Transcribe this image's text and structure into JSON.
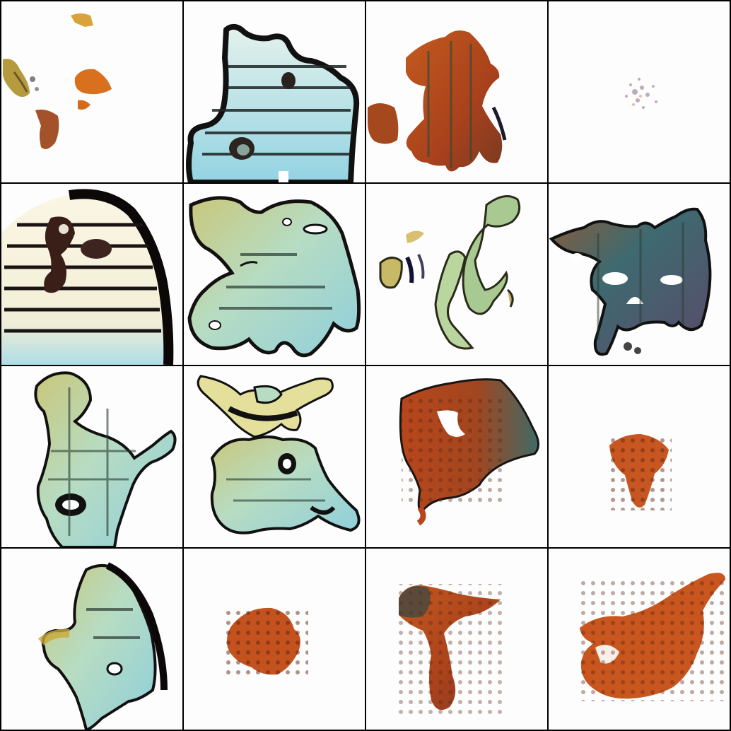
{
  "grid": {
    "rows": 4,
    "cols": 4,
    "background": "#fdfdfd",
    "border": "#000000"
  },
  "palette": {
    "rust": "#b8461c",
    "orange": "#d8701e",
    "gold": "#d9a23a",
    "mint": "#b6dcc0",
    "cyan": "#9dd3df",
    "olive": "#a9c06a",
    "teal": "#3f6f6e",
    "cream": "#f6f0d8",
    "ink": "#141010"
  },
  "tiles": [
    {
      "name": "tile-r1c1",
      "motif": "scattered-orange-blobs"
    },
    {
      "name": "tile-r1c2",
      "motif": "cyan-striped-shape"
    },
    {
      "name": "tile-r1c3",
      "motif": "rust-mushroom-shape"
    },
    {
      "name": "tile-r1c4",
      "motif": "faint-speckle"
    },
    {
      "name": "tile-r2c1",
      "motif": "cream-striped-face"
    },
    {
      "name": "tile-r2c2",
      "motif": "mint-blob"
    },
    {
      "name": "tile-r2c3",
      "motif": "green-fragments"
    },
    {
      "name": "tile-r2c4",
      "motif": "dark-mask-shape"
    },
    {
      "name": "tile-r3c1",
      "motif": "mint-map-shape"
    },
    {
      "name": "tile-r3c2",
      "motif": "mint-swirl-shape"
    },
    {
      "name": "tile-r3c3",
      "motif": "rust-teal-blob"
    },
    {
      "name": "tile-r3c4",
      "motif": "small-rust-cone"
    },
    {
      "name": "tile-r4c1",
      "motif": "mint-leaf-shape"
    },
    {
      "name": "tile-r4c2",
      "motif": "rust-speckle-cluster"
    },
    {
      "name": "tile-r4c3",
      "motif": "rust-tree-shape"
    },
    {
      "name": "tile-r4c4",
      "motif": "rust-flame-shape"
    }
  ]
}
